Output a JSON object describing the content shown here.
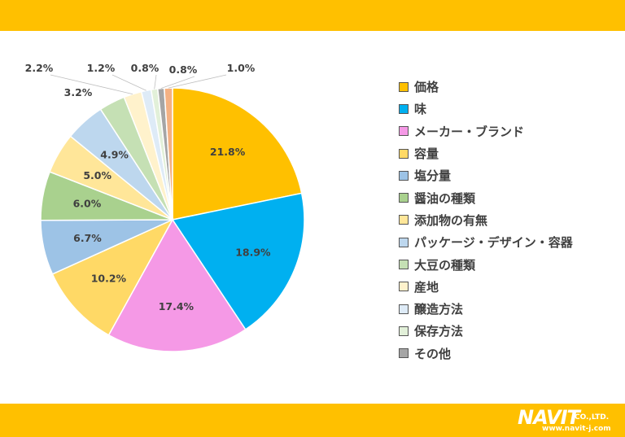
{
  "header": {
    "color": "#FFC000"
  },
  "footer": {
    "color": "#FFC000",
    "logo": {
      "brand": "NAVIT",
      "company": "CO.,LTD.",
      "url": "www.navit-j.com"
    }
  },
  "chart_data": {
    "type": "pie",
    "title": "",
    "start_angle_deg": 90,
    "direction": "clockwise",
    "legend_position": "right",
    "slices": [
      {
        "label": "価格",
        "value": 21.8,
        "value_label": "21.8%",
        "color": "#FFC000"
      },
      {
        "label": "味",
        "value": 18.9,
        "value_label": "18.9%",
        "color": "#00B0F0"
      },
      {
        "label": "メーカー・ブランド",
        "value": 17.4,
        "value_label": "17.4%",
        "color": "#F599E6"
      },
      {
        "label": "容量",
        "value": 10.2,
        "value_label": "10.2%",
        "color": "#FFD966"
      },
      {
        "label": "塩分量",
        "value": 6.7,
        "value_label": "6.7%",
        "color": "#9DC3E6"
      },
      {
        "label": "醤油の種類",
        "value": 6.0,
        "value_label": "6.0%",
        "color": "#A9D18E"
      },
      {
        "label": "添加物の有無",
        "value": 5.0,
        "value_label": "5.0%",
        "color": "#FFE699"
      },
      {
        "label": "パッケージ・デザイン・容器",
        "value": 4.9,
        "value_label": "4.9%",
        "color": "#BDD7EE"
      },
      {
        "label": "大豆の種類",
        "value": 3.2,
        "value_label": "3.2%",
        "color": "#C5E0B4"
      },
      {
        "label": "産地",
        "value": 2.2,
        "value_label": "2.2%",
        "color": "#FFF2CC"
      },
      {
        "label": "醸造方法",
        "value": 1.2,
        "value_label": "1.2%",
        "color": "#DEEBF7"
      },
      {
        "label": "保存方法",
        "value": 0.8,
        "value_label": "0.8%",
        "color": "#E2F0D9"
      },
      {
        "label": "その他",
        "value": 0.8,
        "value_label": "0.8%",
        "color": "#A5A5A5"
      },
      {
        "label": "",
        "value": 1.0,
        "value_label": "1.0%",
        "color": "#F4B183"
      }
    ]
  }
}
